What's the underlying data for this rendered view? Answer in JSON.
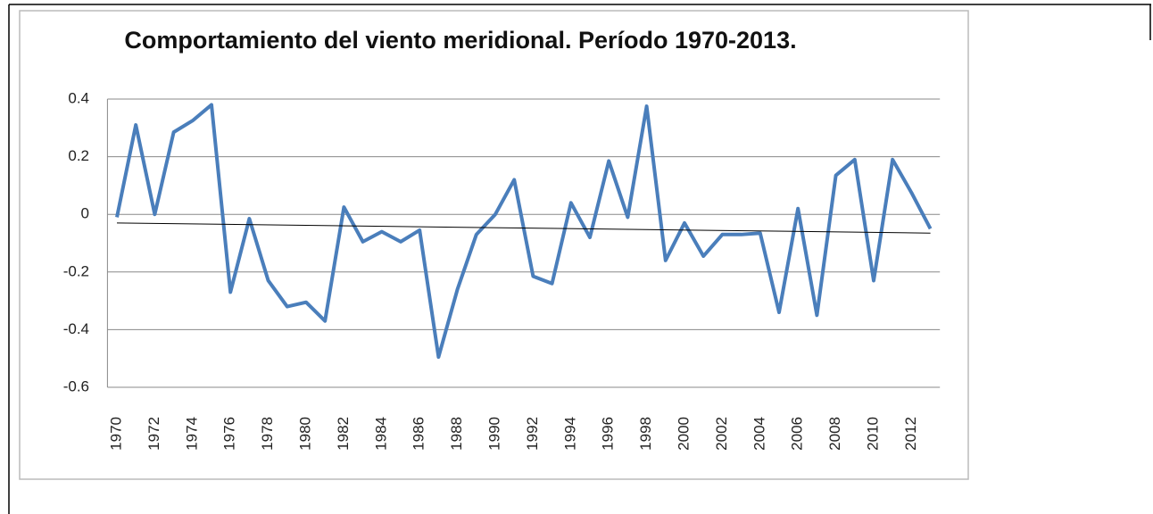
{
  "chart_data": {
    "type": "line",
    "title": "Comportamiento del viento meridional. Período 1970-2013.",
    "categories": [
      "1970",
      null,
      "1972",
      null,
      "1974",
      null,
      "1976",
      null,
      "1978",
      null,
      "1980",
      null,
      "1982",
      null,
      "1984",
      null,
      "1986",
      null,
      "1988",
      null,
      "1990",
      null,
      "1992",
      null,
      "1994",
      null,
      "1996",
      null,
      "1998",
      null,
      "2000",
      null,
      "2002",
      null,
      "2004",
      null,
      "2006",
      null,
      "2008",
      null,
      "2010",
      null,
      "2012",
      null
    ],
    "values": [
      -0.01,
      0.31,
      0.0,
      0.285,
      0.325,
      0.38,
      -0.27,
      -0.015,
      -0.23,
      -0.32,
      -0.305,
      -0.37,
      0.025,
      -0.095,
      -0.06,
      -0.095,
      -0.055,
      -0.495,
      -0.26,
      -0.07,
      0.0,
      0.12,
      -0.215,
      -0.24,
      0.04,
      -0.08,
      0.185,
      -0.01,
      0.375,
      -0.16,
      -0.03,
      -0.145,
      -0.07,
      -0.07,
      -0.065,
      -0.34,
      0.02,
      -0.35,
      0.135,
      0.19,
      -0.23,
      0.19,
      0.075,
      -0.05
    ],
    "color": "#4a7ebb",
    "trendline": {
      "start": -0.03,
      "end": -0.065,
      "color": "#000000"
    },
    "ylim": [
      -0.6,
      0.4
    ],
    "yticks": [
      0.4,
      0.2,
      0,
      -0.2,
      -0.4,
      -0.6
    ],
    "grid": true
  }
}
